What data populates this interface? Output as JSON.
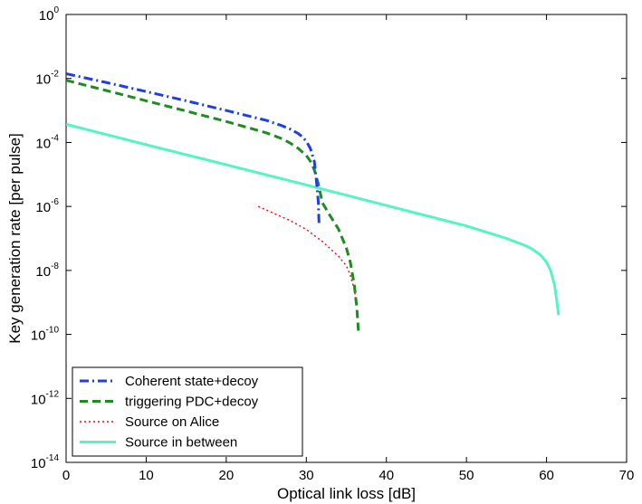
{
  "chart_data": {
    "type": "line",
    "xlabel": "Optical link loss [dB]",
    "ylabel": "Key generation rate [per pulse]",
    "xlim": [
      0,
      70
    ],
    "ylim_exponent": [
      -14,
      0
    ],
    "y_scale": "log",
    "grid": false,
    "legend_position": "bottom-left",
    "x_ticks": [
      "0",
      "10",
      "20",
      "30",
      "40",
      "50",
      "60",
      "70"
    ],
    "y_ticks": [
      {
        "base": "10",
        "exp": "0"
      },
      {
        "base": "10",
        "exp": "-2"
      },
      {
        "base": "10",
        "exp": "-4"
      },
      {
        "base": "10",
        "exp": "-6"
      },
      {
        "base": "10",
        "exp": "-8"
      },
      {
        "base": "10",
        "exp": "-10"
      },
      {
        "base": "10",
        "exp": "-12"
      },
      {
        "base": "10",
        "exp": "-14"
      }
    ],
    "series": [
      {
        "name": "Coherent state+decoy",
        "color": "#1f3fe6",
        "dash": "dashdot",
        "points": [
          [
            0,
            0.014
          ],
          [
            5,
            0.0075
          ],
          [
            10,
            0.0039
          ],
          [
            15,
            0.002
          ],
          [
            20,
            0.001
          ],
          [
            25,
            0.00049
          ],
          [
            27,
            0.00033
          ],
          [
            28,
            0.00026
          ],
          [
            29,
            0.00019
          ],
          [
            29.5,
            0.00015
          ],
          [
            30,
            0.00011
          ],
          [
            30.5,
            6.5e-05
          ],
          [
            31,
            2.6e-05
          ],
          [
            31.3,
            5e-06
          ],
          [
            31.5,
            1.3e-06
          ],
          [
            31.6,
            2.5e-07
          ]
        ]
      },
      {
        "name": "triggering PDC+decoy",
        "color": "#1e8c1e",
        "dash": "dashed",
        "points": [
          [
            0,
            0.0088
          ],
          [
            5,
            0.0042
          ],
          [
            10,
            0.002
          ],
          [
            15,
            0.00096
          ],
          [
            20,
            0.00045
          ],
          [
            25,
            0.0002
          ],
          [
            27,
            0.00013
          ],
          [
            28,
            9.5e-05
          ],
          [
            29,
            6.5e-05
          ],
          [
            30,
            3.9e-05
          ],
          [
            30.5,
            2.6e-05
          ],
          [
            31,
            1.4e-05
          ],
          [
            31.5,
            5e-06
          ],
          [
            32,
            1.3e-06
          ],
          [
            33,
            5e-07
          ],
          [
            34,
            2e-07
          ],
          [
            35,
            5e-08
          ],
          [
            35.5,
            1.8e-08
          ],
          [
            36,
            3.5e-09
          ],
          [
            36.3,
            7e-10
          ],
          [
            36.5,
            1.3e-10
          ]
        ]
      },
      {
        "name": "Source on Alice",
        "color": "#ee1111",
        "dash": "dotted",
        "points": [
          [
            24,
            1e-06
          ],
          [
            26,
            6e-07
          ],
          [
            28,
            3.6e-07
          ],
          [
            30,
            1.9e-07
          ],
          [
            32,
            8e-08
          ],
          [
            34,
            2.8e-08
          ],
          [
            35,
            1.4e-08
          ],
          [
            35.5,
            7e-09
          ],
          [
            36,
            2.5e-09
          ],
          [
            36.3,
            8e-10
          ]
        ]
      },
      {
        "name": "Source in between",
        "color": "#54f5c4",
        "dash": "solid",
        "points": [
          [
            0,
            0.00037
          ],
          [
            10,
            8.5e-05
          ],
          [
            20,
            2e-05
          ],
          [
            30,
            4.7e-06
          ],
          [
            40,
            1.07e-06
          ],
          [
            50,
            2.45e-07
          ],
          [
            55,
            1e-07
          ],
          [
            57,
            6.5e-08
          ],
          [
            58,
            5e-08
          ],
          [
            59,
            3.4e-08
          ],
          [
            59.5,
            2.6e-08
          ],
          [
            60,
            1.8e-08
          ],
          [
            60.5,
            1e-08
          ],
          [
            61,
            3.5e-09
          ],
          [
            61.3,
            1e-09
          ],
          [
            61.5,
            4e-10
          ]
        ]
      }
    ]
  }
}
